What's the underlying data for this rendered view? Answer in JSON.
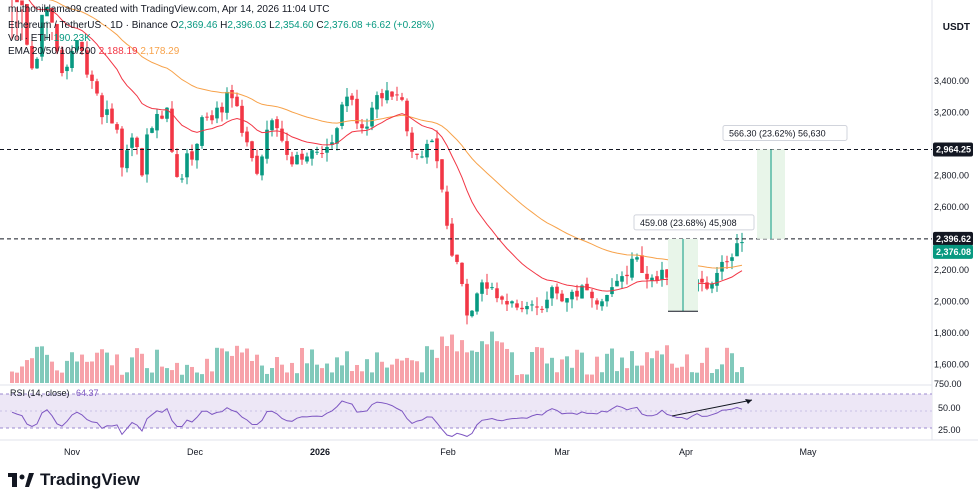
{
  "header": {
    "created_by": "muthoniklama09 created with TradingView.com, Apr 14, 2026 11:04 UTC",
    "symbol": "Ethereum / TetherUS · 1D · Binance",
    "open_label": "O",
    "open": "2,369.46",
    "high_label": "H",
    "high": "2,396.03",
    "low_label": "L",
    "low": "2,354.60",
    "close_label": "C",
    "close": "2,376.08",
    "change": "+6.62 (+0.28%)",
    "vol_label": "Vol · ETH",
    "vol": "190.23K",
    "ema_label": "EMA 20/50/100/200",
    "ema20": "2,188.19",
    "ema50": "2,178.29"
  },
  "currency": "USDT",
  "brand": "TradingView",
  "colors": {
    "up": "#089981",
    "down": "#f23645",
    "ema20": "#f23645",
    "ema50": "#f7a24a",
    "rsi": "#7e57c2",
    "rsi_band": "#ede7f6",
    "measure_fill": "#e8f5e9",
    "measure_line": "#089981"
  },
  "chart_data": {
    "type": "candlestick",
    "y_ticks": [
      "1,600.00",
      "1,800.00",
      "2,000.00",
      "2,200.00",
      "2,400.00",
      "2,600.00",
      "2,800.00",
      "3,000.00",
      "3,200.00",
      "3,400.00"
    ],
    "ylim": [
      1500,
      3660
    ],
    "x_ticks": [
      "Nov",
      "Dec",
      "2026",
      "Feb",
      "Mar",
      "Apr",
      "May"
    ],
    "price_labels": [
      {
        "text": "2,964.25",
        "value": 2964.25
      },
      {
        "text": "2,396.62",
        "value": 2396.62
      },
      {
        "text": "2,376.08",
        "value": 2376.08
      }
    ],
    "measures": [
      {
        "text": "459.08 (23.68%) 45,908"
      },
      {
        "text": "566.30 (23.62%) 56,630"
      }
    ],
    "close": [
      3980,
      3900,
      3880,
      3630,
      3480,
      3540,
      3820,
      3870,
      3770,
      3590,
      3450,
      3490,
      3590,
      3660,
      3590,
      3440,
      3400,
      3320,
      3170,
      3220,
      3130,
      3090,
      2850,
      2960,
      3040,
      2980,
      2800,
      3060,
      3100,
      3190,
      3160,
      3230,
      2950,
      2790,
      2780,
      2940,
      2900,
      3000,
      3170,
      3170,
      3150,
      3230,
      3200,
      3330,
      3290,
      3240,
      3070,
      3010,
      2910,
      2810,
      2920,
      3090,
      3150,
      3100,
      3020,
      2930,
      2870,
      2930,
      2900,
      2920,
      2960,
      2950,
      2940,
      2980,
      3010,
      3100,
      3250,
      3300,
      3280,
      3130,
      3100,
      3110,
      3230,
      3310,
      3290,
      3340,
      3300,
      3310,
      3280,
      3080,
      2950,
      2930,
      2920,
      3000,
      3020,
      2890,
      2710,
      2480,
      2290,
      2250,
      2110,
      1910,
      1940,
      2050,
      2120,
      2080,
      2090,
      2020,
      2010,
      1980,
      2000,
      1960,
      1950,
      1970,
      1980,
      1960,
      1950,
      2010,
      2090,
      2050,
      2000,
      2020,
      2060,
      2030,
      2100,
      2070,
      2020,
      1980,
      2000,
      2040,
      2090,
      2130,
      2160,
      2160,
      2270,
      2280,
      2180,
      2140,
      2150,
      2130,
      2200,
      2150,
      2130,
      2100,
      2070,
      2000,
      2060,
      2140,
      2120,
      2080,
      2110,
      2180,
      2250,
      2250,
      2280,
      2369,
      2376
    ]
  }
}
